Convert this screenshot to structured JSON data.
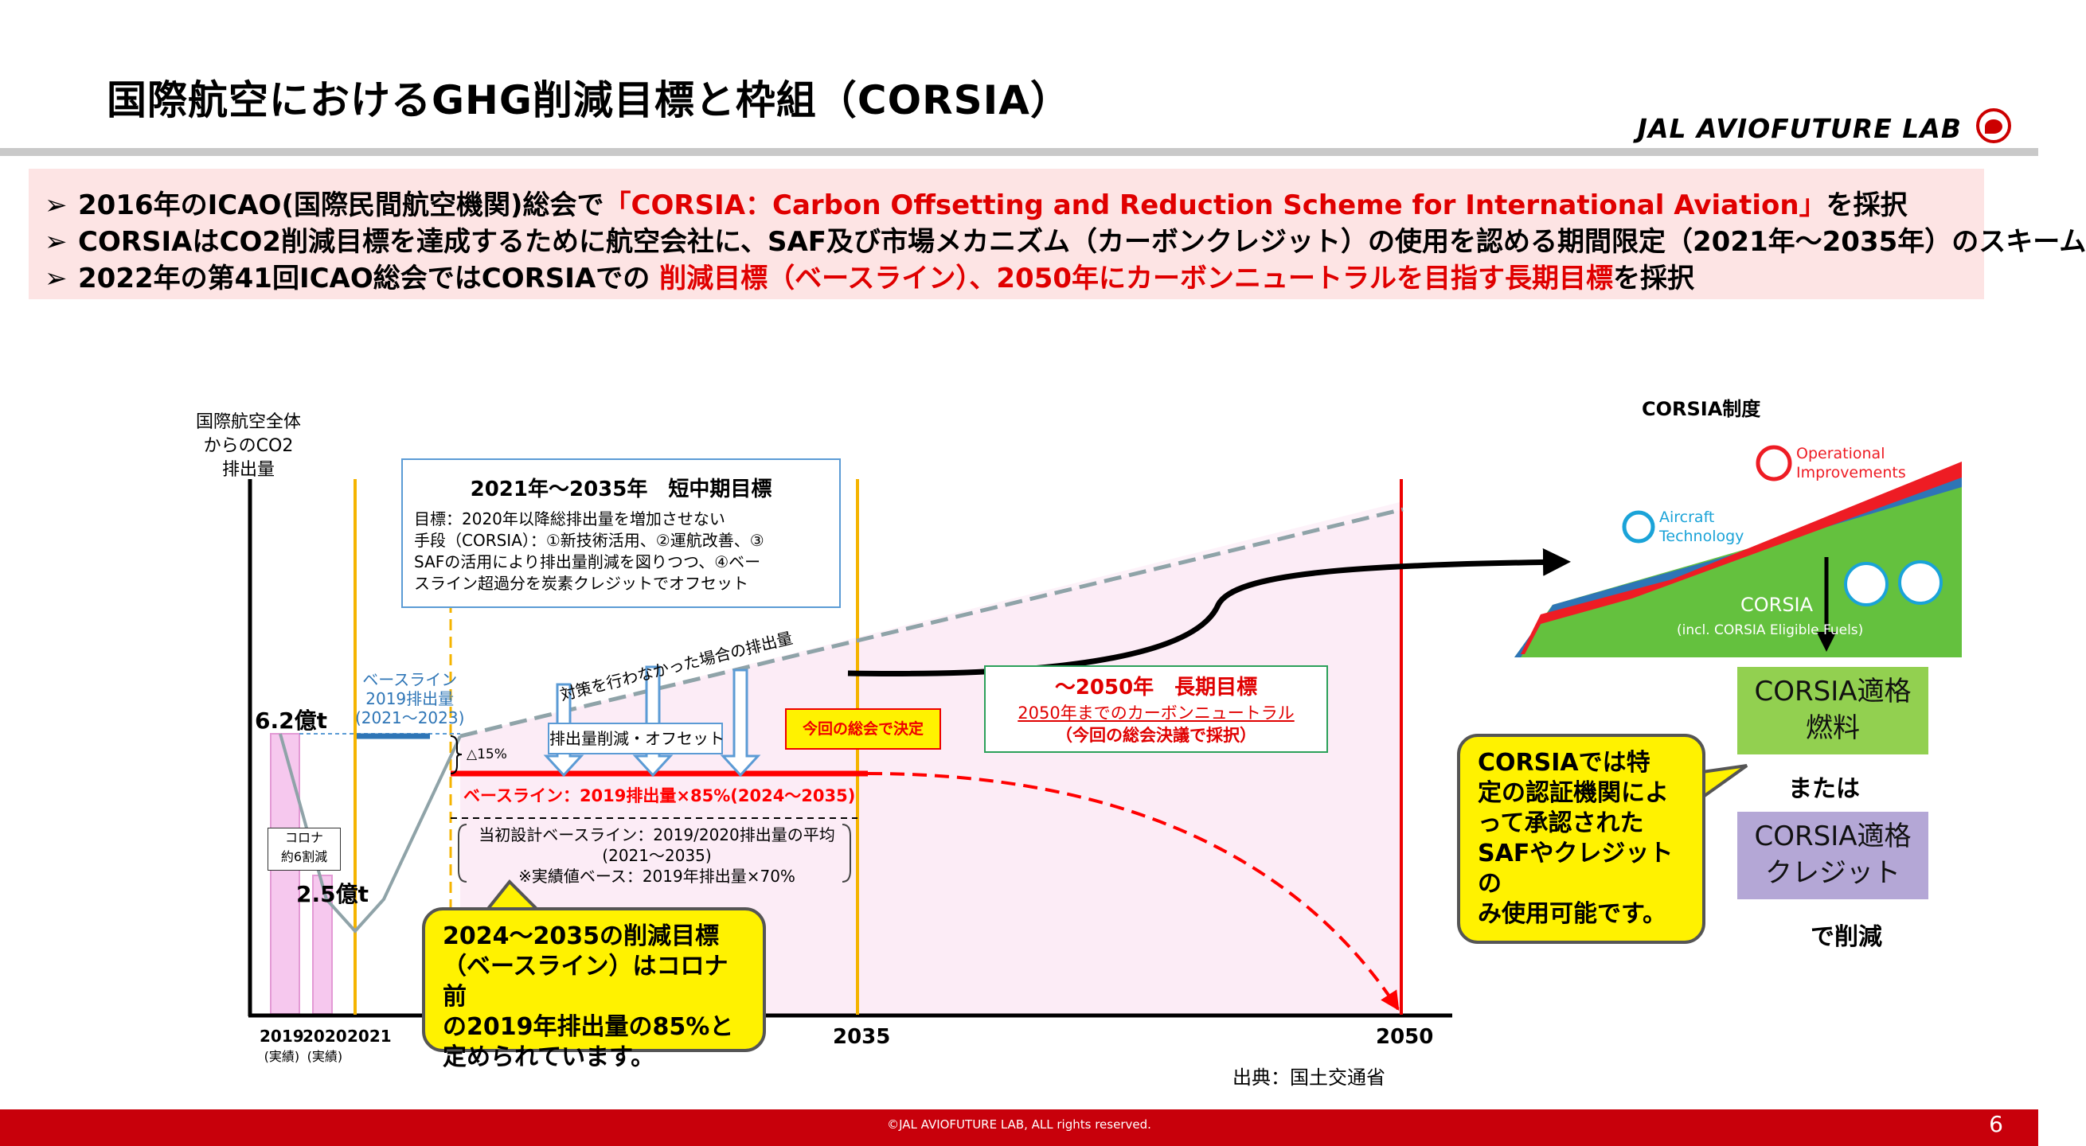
{
  "header": {
    "title": "国際航空におけるGHG削減目標と枠組（CORSIA）",
    "logo_text": "JAL AVIOFUTURE LAB"
  },
  "bullets": {
    "marker": "➢",
    "b1_a": "2016年のICAO(国際民間航空機関)総会で",
    "b1_red": "「CORSIA：Carbon Offsetting and Reduction Scheme for International Aviation」",
    "b1_b": "を採択",
    "b2": "CORSIAはCO2削減目標を達成するために航空会社に、SAF及び市場メカニズム（カーボンクレジット）の使用を認める期間限定（2021年〜2035年）のスキーム",
    "b3_a": "2022年の第41回ICAO総会ではCORSIAでの ",
    "b3_red": "削減目標（ベースライン）、2050年にカーボンニュートラルを目指す長期目標",
    "b3_b": "を採択"
  },
  "chart": {
    "ylabel_1": "国際航空全体",
    "ylabel_2": "からのCO2",
    "ylabel_3": "排出量",
    "val_62": "6.2億t",
    "val_25": "2.5億t",
    "corona_1": "コロナ",
    "corona_2": "約6割減",
    "x_2019": "2019",
    "x_2019_sub": "(実績)",
    "x_2020": "2020",
    "x_2020_sub": "(実績)",
    "x_2021": "2021",
    "x_2035": "2035",
    "x_2050": "2050",
    "baseline_label_1": "ベースライン",
    "baseline_label_2": "2019排出量",
    "baseline_label_3": "(2021〜2023)",
    "delta": "△15%",
    "no_action": "対策を行わなかった場合の排出量",
    "reduction_offset": "排出量削減・オフセット",
    "decided": "今回の総会で決定",
    "baseline_85": "ベースライン：2019排出量×85%(2024〜2035)",
    "initial_1": "当初設計ベースライン：2019/2020排出量の平均",
    "initial_2": "(2021〜2035)",
    "initial_3": "※実績値ベース：2019年排出量×70%",
    "short_title": "2021年〜2035年　短中期目標",
    "short_l1": "目標：2020年以降総排出量を増加させない",
    "short_l2": "手段（CORSIA）：①新技術活用、②運航改善、③",
    "short_l3": "SAFの活用により排出量削減を図りつつ、④ベー",
    "short_l4": "スライン超過分を炭素クレジットでオフセット",
    "long_title": "〜2050年　長期目標",
    "long_l1": "2050年までのカーボンニュートラル",
    "long_l2": "（今回の総会決議で採択）",
    "callout_1": "2024〜2035の削減目標",
    "callout_2": "（ベースライン）はコロナ前",
    "callout_3": "の2019年排出量の85%と",
    "callout_4": "定められています。",
    "colors": {
      "baseline_red": "#ff0000",
      "deadline_orange": "#f5b400",
      "projection_grey": "#8fa3a8",
      "band_pink": "#fbeaf6"
    }
  },
  "corsia": {
    "heading": "CORSIA制度",
    "op_1": "Operational",
    "op_2": "Improvements",
    "ac_1": "Aircraft",
    "ac_2": "Technology",
    "corsia_label": "CORSIA",
    "corsia_sub": "(incl. CORSIA Eligible Fuels)",
    "fuel_1": "CORSIA適格",
    "fuel_2": "燃料",
    "or": "または",
    "credit_1": "CORSIA適格",
    "credit_2": "クレジット",
    "reduce": "で削減",
    "callout_1": "CORSIAでは特",
    "callout_2": "定の認証機関によ",
    "callout_3": "って承認された",
    "callout_4": "SAFやクレジットの",
    "callout_5": "み使用可能です。"
  },
  "footer": {
    "source": "出典：国土交通省",
    "copyright": "©JAL AVIOFUTURE LAB, ALL rights reserved.",
    "page": "6"
  }
}
